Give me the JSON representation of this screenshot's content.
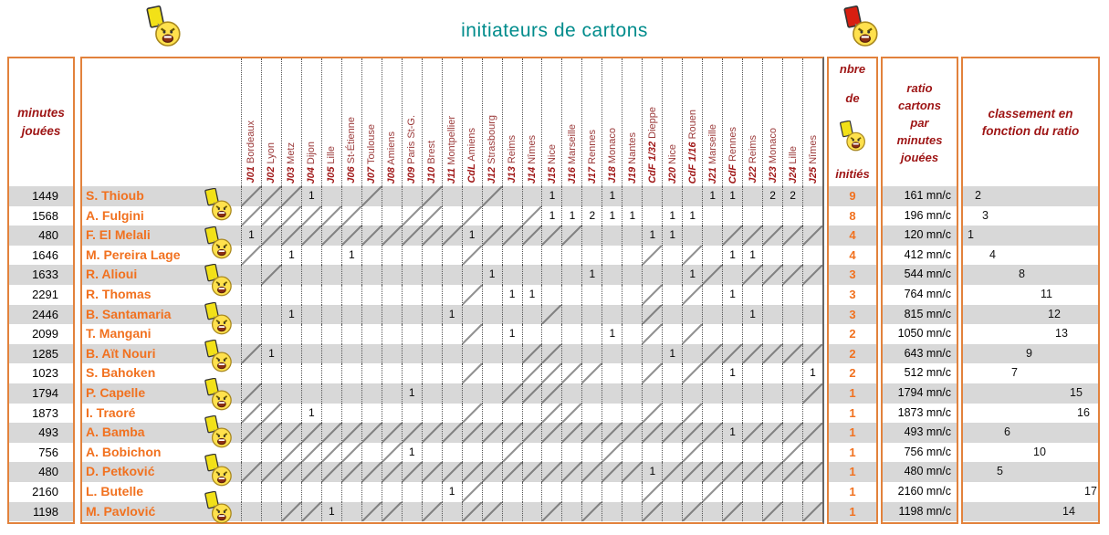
{
  "title": "initiateurs de cartons",
  "colors": {
    "accent_orange": "#E2823C",
    "player_orange": "#F1711F",
    "header_maroon": "#9E1515",
    "title_teal": "#008C8C",
    "row_stripe": "#D8D8D8"
  },
  "icons": {
    "top_left": "yellow-card-referee-icon",
    "top_right": "red-card-referee-icon",
    "nbre_header": "yellow-card-referee-icon"
  },
  "left_header": {
    "line1": "minutes",
    "line2": "jouées"
  },
  "nbre_header": {
    "line1": "nbre",
    "line2": "de",
    "line3": "initiés"
  },
  "ratio_header": {
    "lines": [
      "ratio",
      "cartons",
      "par",
      "minutes",
      "jouées"
    ]
  },
  "classement_header": {
    "lines": [
      "classement en",
      "fonction du ratio"
    ]
  },
  "match_columns": [
    {
      "code": "J01",
      "opponent": "Bordeaux"
    },
    {
      "code": "J02",
      "opponent": "Lyon"
    },
    {
      "code": "J03",
      "opponent": "Metz"
    },
    {
      "code": "J04",
      "opponent": "Dijon"
    },
    {
      "code": "J05",
      "opponent": "Lille"
    },
    {
      "code": "J06",
      "opponent": "St-Étienne"
    },
    {
      "code": "J07",
      "opponent": "Toulouse"
    },
    {
      "code": "J08",
      "opponent": "Amiens"
    },
    {
      "code": "J09",
      "opponent": "Paris St-G."
    },
    {
      "code": "J10",
      "opponent": "Brest"
    },
    {
      "code": "J11",
      "opponent": "Montpellier"
    },
    {
      "code": "CdL",
      "opponent": "Amiens"
    },
    {
      "code": "J12",
      "opponent": "Strasbourg"
    },
    {
      "code": "J13",
      "opponent": "Reims"
    },
    {
      "code": "J14",
      "opponent": "Nîmes"
    },
    {
      "code": "J15",
      "opponent": "Nice"
    },
    {
      "code": "J16",
      "opponent": "Marseille"
    },
    {
      "code": "J17",
      "opponent": "Rennes"
    },
    {
      "code": "J18",
      "opponent": "Monaco"
    },
    {
      "code": "J19",
      "opponent": "Nantes"
    },
    {
      "code": "CdF 1/32",
      "opponent": "Dieppe"
    },
    {
      "code": "J20",
      "opponent": "Nice"
    },
    {
      "code": "CdF 1/16",
      "opponent": "Rouen"
    },
    {
      "code": "J21",
      "opponent": "Marseille"
    },
    {
      "code": "CdF",
      "opponent": "Rennes"
    },
    {
      "code": "J22",
      "opponent": "Reims"
    },
    {
      "code": "J23",
      "opponent": "Monaco"
    },
    {
      "code": "J24",
      "opponent": "Lille"
    },
    {
      "code": "J25",
      "opponent": "Nîmes"
    }
  ],
  "players": [
    {
      "minutes": "1449",
      "name": "S. Thioub",
      "cards": {
        "4": 1,
        "16": 1,
        "19": 1,
        "24": 1,
        "25": 1,
        "27": 2,
        "28": 2
      },
      "unplayed": [
        1,
        2,
        3,
        7,
        10,
        13
      ],
      "nbre": "9",
      "ratio": "161 mn/c",
      "rank": 2
    },
    {
      "minutes": "1568",
      "name": "A. Fulgini",
      "cards": {
        "16": 1,
        "17": 1,
        "18": 2,
        "19": 1,
        "20": 1,
        "22": 1,
        "23": 1
      },
      "unplayed": [
        1,
        2,
        3,
        4,
        5,
        6,
        9,
        10,
        12,
        15
      ],
      "nbre": "8",
      "ratio": "196 mn/c",
      "rank": 3
    },
    {
      "minutes": "480",
      "name": "F. El Melali",
      "cards": {
        "1": 1,
        "12": 1,
        "21": 1,
        "22": 1
      },
      "unplayed": [
        2,
        3,
        4,
        5,
        6,
        7,
        8,
        9,
        10,
        11,
        13,
        14,
        15,
        16,
        17,
        25,
        26,
        27,
        28,
        29
      ],
      "nbre": "4",
      "ratio": "120 mn/c",
      "rank": 1
    },
    {
      "minutes": "1646",
      "name": "M. Pereira Lage",
      "cards": {
        "3": 1,
        "6": 1,
        "25": 1,
        "26": 1
      },
      "unplayed": [
        1,
        12,
        21,
        23
      ],
      "nbre": "4",
      "ratio": "412 mn/c",
      "rank": 4
    },
    {
      "minutes": "1633",
      "name": "R. Alioui",
      "cards": {
        "13": 1,
        "18": 1,
        "23": 1
      },
      "unplayed": [
        2,
        24,
        26,
        27,
        28,
        29
      ],
      "nbre": "3",
      "ratio": "544 mn/c",
      "rank": 8
    },
    {
      "minutes": "2291",
      "name": "R. Thomas",
      "cards": {
        "14": 1,
        "15": 1,
        "25": 1
      },
      "unplayed": [
        12,
        21,
        23
      ],
      "nbre": "3",
      "ratio": "764 mn/c",
      "rank": 11
    },
    {
      "minutes": "2446",
      "name": "B. Santamaria",
      "cards": {
        "3": 1,
        "11": 1,
        "26": 1
      },
      "unplayed": [
        16,
        21
      ],
      "nbre": "3",
      "ratio": "815 mn/c",
      "rank": 12
    },
    {
      "minutes": "2099",
      "name": "T. Mangani",
      "cards": {
        "14": 1,
        "19": 1
      },
      "unplayed": [
        12,
        21,
        23
      ],
      "nbre": "2",
      "ratio": "1050 mn/c",
      "rank": 13
    },
    {
      "minutes": "1285",
      "name": "B. Aït Nouri",
      "cards": {
        "2": 1,
        "22": 1
      },
      "unplayed": [
        1,
        15,
        16,
        24,
        25,
        26,
        27,
        28,
        29
      ],
      "nbre": "2",
      "ratio": "643 mn/c",
      "rank": 9
    },
    {
      "minutes": "1023",
      "name": "S. Bahoken",
      "cards": {
        "25": 1,
        "29": 1
      },
      "unplayed": [
        12,
        15,
        16,
        17,
        18,
        21,
        23
      ],
      "nbre": "2",
      "ratio": "512 mn/c",
      "rank": 7
    },
    {
      "minutes": "1794",
      "name": "P. Capelle",
      "cards": {
        "9": 1
      },
      "unplayed": [
        1,
        14,
        15,
        16,
        29
      ],
      "nbre": "1",
      "ratio": "1794 mn/c",
      "rank": 15
    },
    {
      "minutes": "1873",
      "name": "I. Traoré",
      "cards": {
        "4": 1
      },
      "unplayed": [
        1,
        2,
        12,
        16,
        17,
        21,
        23
      ],
      "nbre": "1",
      "ratio": "1873 mn/c",
      "rank": 16
    },
    {
      "minutes": "493",
      "name": "A. Bamba",
      "cards": {
        "25": 1
      },
      "unplayed": [
        1,
        2,
        3,
        4,
        5,
        6,
        7,
        8,
        9,
        10,
        11,
        12,
        13,
        14,
        15,
        16,
        17,
        18,
        19,
        20,
        21,
        22,
        23,
        24,
        26,
        27,
        28,
        29
      ],
      "nbre": "1",
      "ratio": "493 mn/c",
      "rank": 6
    },
    {
      "minutes": "756",
      "name": "A. Bobichon",
      "cards": {
        "9": 1
      },
      "unplayed": [
        3,
        4,
        5,
        6,
        8,
        14,
        19,
        23,
        28
      ],
      "nbre": "1",
      "ratio": "756 mn/c",
      "rank": 10
    },
    {
      "minutes": "480",
      "name": "D. Petković",
      "cards": {
        "21": 1
      },
      "unplayed": [
        1,
        2,
        3,
        4,
        5,
        6,
        7,
        8,
        9,
        10,
        11,
        12,
        13,
        14,
        15,
        16,
        17,
        18,
        19,
        20,
        22,
        23,
        24,
        25,
        26,
        27,
        28,
        29
      ],
      "nbre": "1",
      "ratio": "480 mn/c",
      "rank": 5
    },
    {
      "minutes": "2160",
      "name": "L. Butelle",
      "cards": {
        "11": 1
      },
      "unplayed": [
        12,
        21,
        24
      ],
      "nbre": "1",
      "ratio": "2160 mn/c",
      "rank": 17
    },
    {
      "minutes": "1198",
      "name": "M. Pavlović",
      "cards": {
        "5": 1
      },
      "unplayed": [
        3,
        4,
        7,
        8,
        10,
        12,
        13,
        16,
        18,
        21,
        23,
        25,
        27,
        29
      ],
      "nbre": "1",
      "ratio": "1198 mn/c",
      "rank": 14
    }
  ]
}
